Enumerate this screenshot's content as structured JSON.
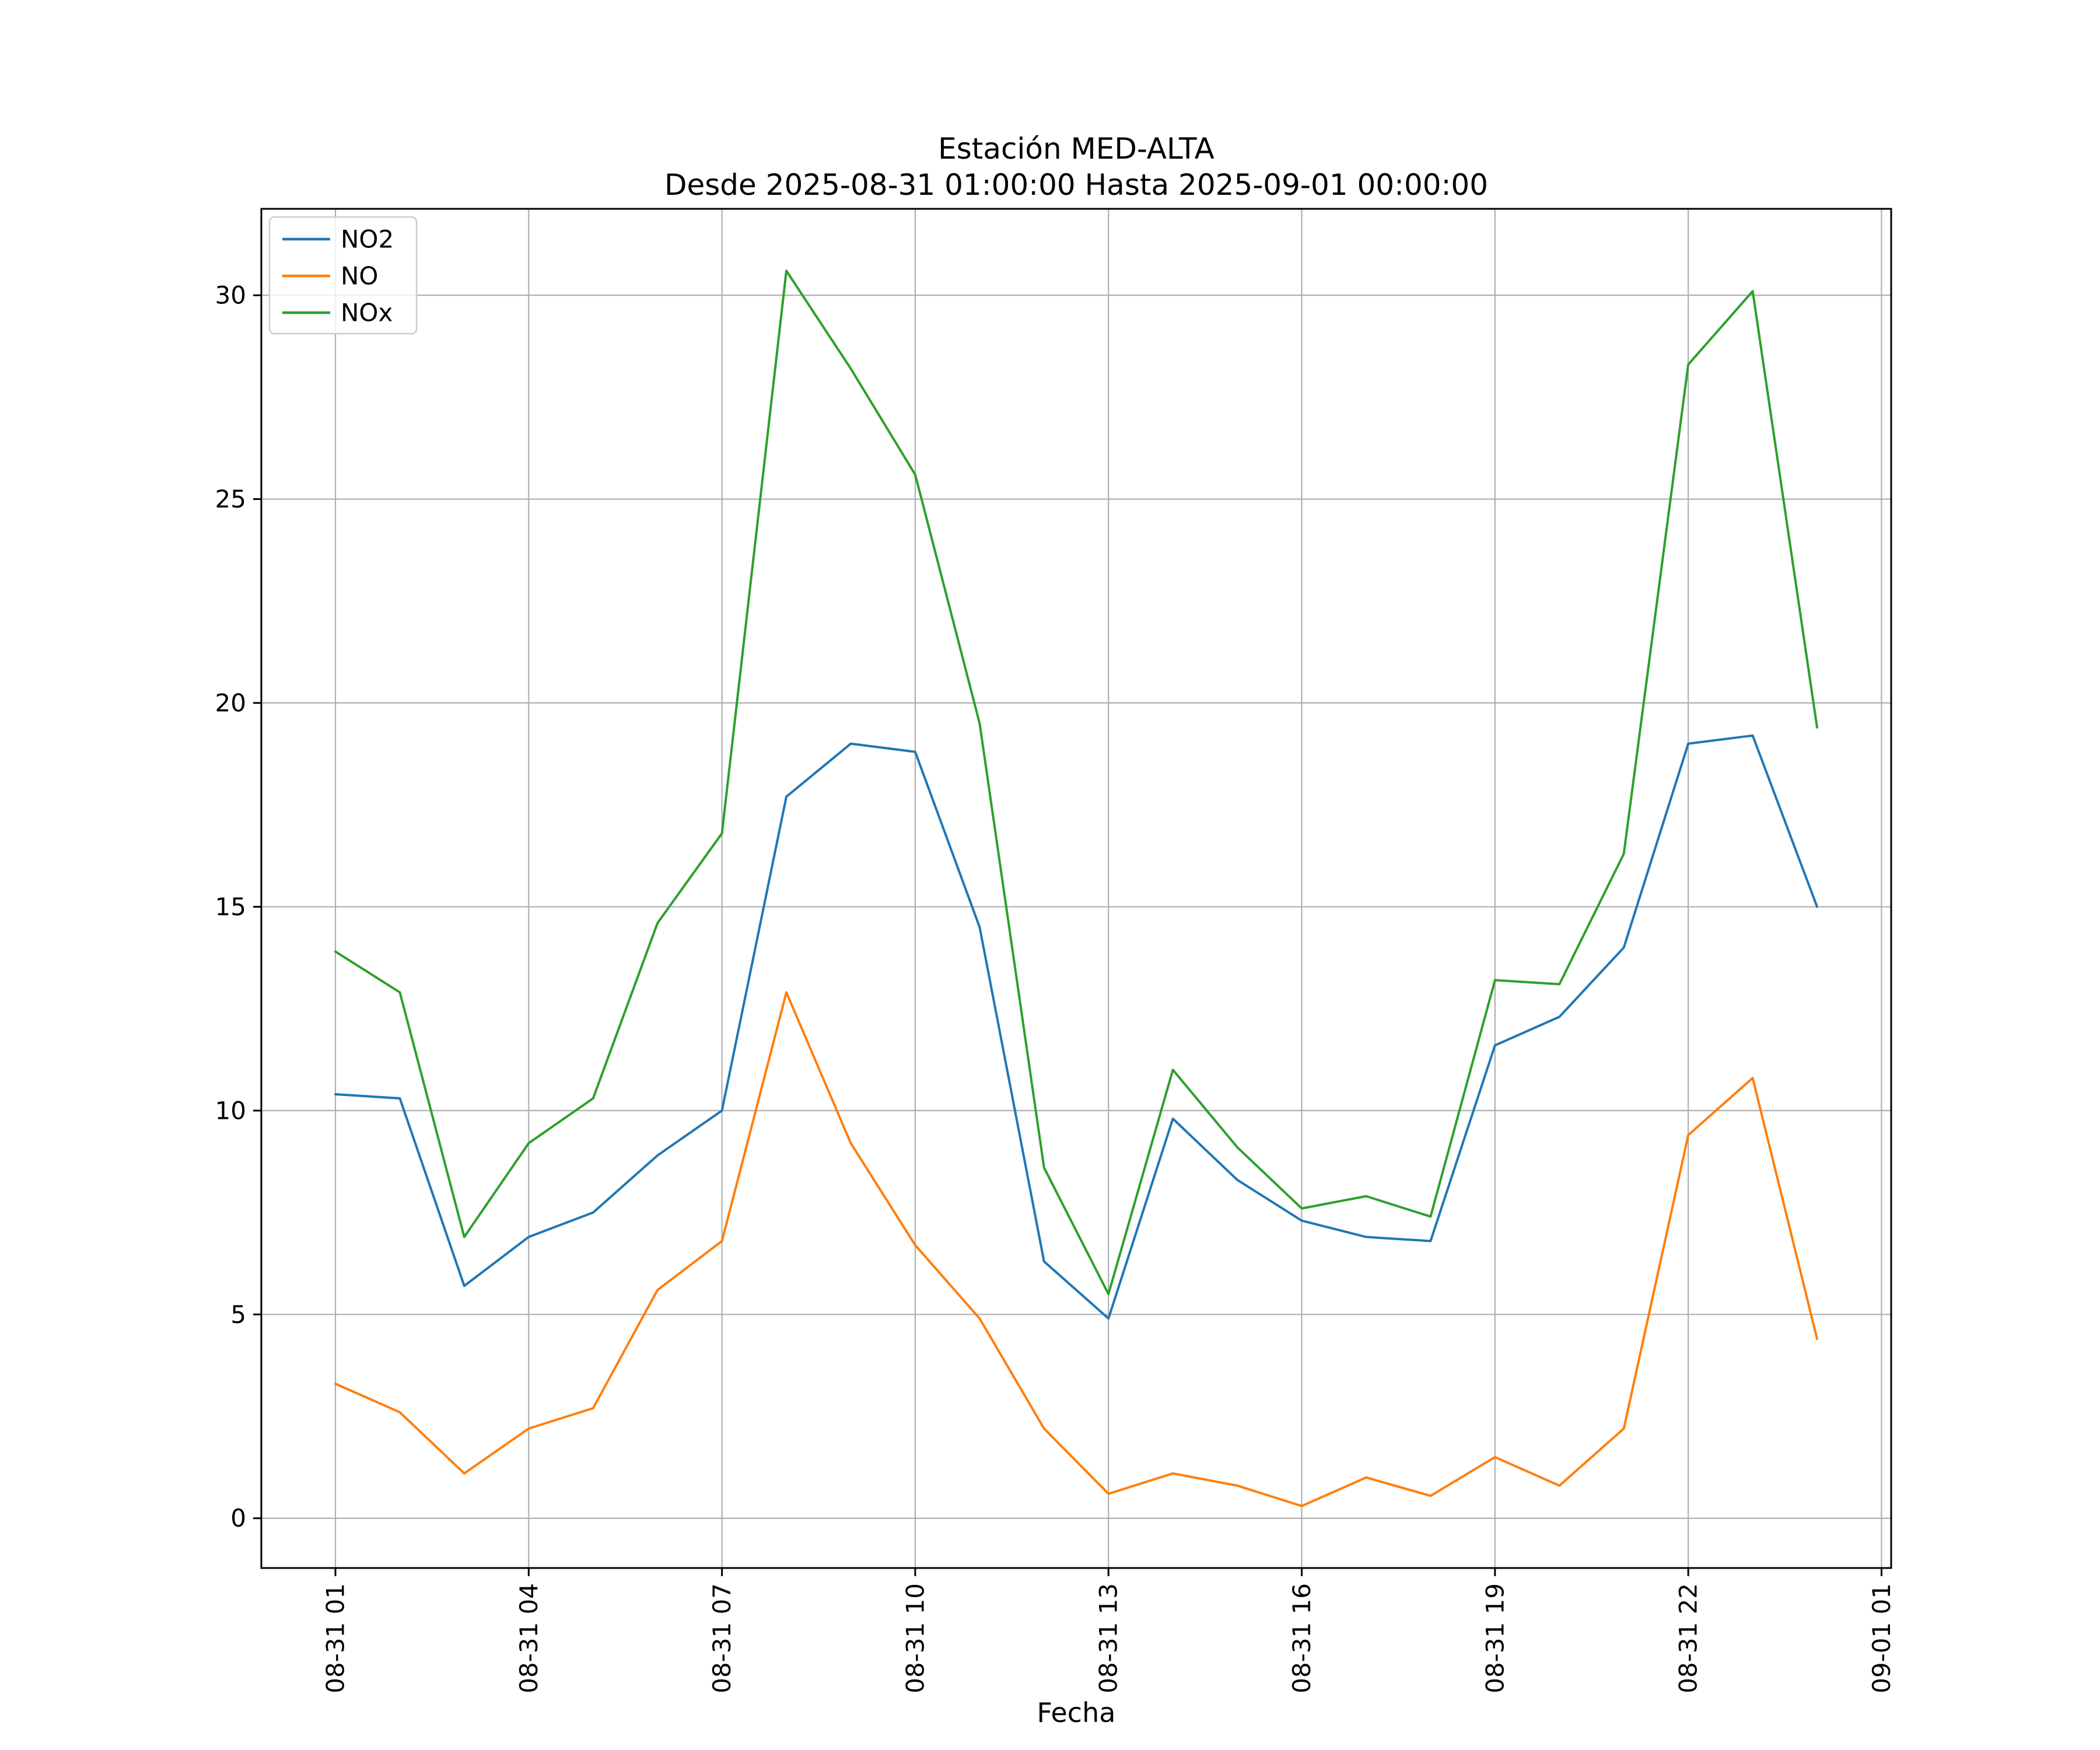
{
  "chart_data": {
    "type": "line",
    "title": "Estación MED-ALTA",
    "subtitle": "Desde 2025-08-31 01:00:00 Hasta 2025-09-01 00:00:00",
    "xlabel": "Fecha",
    "ylabel": "",
    "grid": true,
    "legend_position": "upper left",
    "x": [
      0,
      1,
      2,
      3,
      4,
      5,
      6,
      7,
      8,
      9,
      10,
      11,
      12,
      13,
      14,
      15,
      16,
      17,
      18,
      19,
      20,
      21,
      22,
      23
    ],
    "series": [
      {
        "name": "NO2",
        "color": "#1f77b4",
        "values": [
          10.4,
          10.3,
          5.7,
          6.9,
          7.5,
          8.9,
          10.0,
          17.7,
          19.0,
          18.8,
          14.5,
          6.3,
          4.9,
          9.8,
          8.3,
          7.3,
          6.9,
          6.8,
          11.6,
          12.3,
          14.0,
          19.0,
          19.2,
          15.0
        ]
      },
      {
        "name": "NO",
        "color": "#ff7f0e",
        "values": [
          3.3,
          2.6,
          1.1,
          2.2,
          2.7,
          5.6,
          6.8,
          12.9,
          9.2,
          6.7,
          4.9,
          2.2,
          0.6,
          1.1,
          0.8,
          0.3,
          1.0,
          0.55,
          1.5,
          0.8,
          2.2,
          9.4,
          10.8,
          4.4
        ]
      },
      {
        "name": "NOx",
        "color": "#2ca02c",
        "values": [
          13.9,
          12.9,
          6.9,
          9.2,
          10.3,
          14.6,
          16.8,
          30.6,
          28.2,
          25.6,
          19.5,
          8.6,
          5.5,
          11.0,
          9.1,
          7.6,
          7.9,
          7.4,
          13.2,
          13.1,
          16.3,
          28.3,
          30.1,
          19.4
        ]
      }
    ],
    "xticks": {
      "positions": [
        0,
        3,
        6,
        9,
        12,
        15,
        18,
        21,
        24
      ],
      "labels": [
        "08-31 01",
        "08-31 04",
        "08-31 07",
        "08-31 10",
        "08-31 13",
        "08-31 16",
        "08-31 19",
        "08-31 22",
        "09-01 01"
      ]
    },
    "yticks": [
      0,
      5,
      10,
      15,
      20,
      25,
      30
    ],
    "xlim": [
      -1.15,
      24.15
    ],
    "ylim": [
      -1.22,
      32.12
    ],
    "grid_color": "#b0b0b0",
    "spine_color": "#000000"
  }
}
